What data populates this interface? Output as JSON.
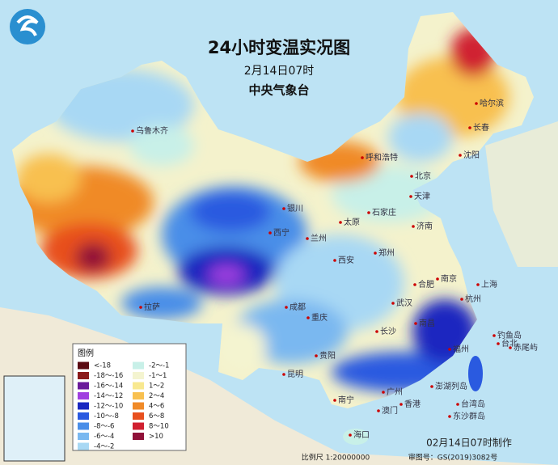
{
  "header": {
    "title": "24小时变温实况图",
    "subtitle": "2月14日07时",
    "org": "中央气象台"
  },
  "legend": {
    "title": "图例",
    "items": [
      {
        "label": "<-18",
        "color": "#5a0a12"
      },
      {
        "label": "-18～-16",
        "color": "#8a1a1a"
      },
      {
        "label": "-16～-14",
        "color": "#6a1a9a"
      },
      {
        "label": "-14～-12",
        "color": "#a040e0"
      },
      {
        "label": "-12～-10",
        "color": "#1a28c0"
      },
      {
        "label": "-10～-8",
        "color": "#2a5ae0"
      },
      {
        "label": "-8～-6",
        "color": "#4a8ee8"
      },
      {
        "label": "-6～-4",
        "color": "#7ab8f0"
      },
      {
        "label": "-4～-2",
        "color": "#a8d8f4"
      },
      {
        "label": "-2～-1",
        "color": "#c8f0e8"
      },
      {
        "label": "-1～1",
        "color": "#f4f4d0"
      },
      {
        "label": "1～2",
        "color": "#f8e890"
      },
      {
        "label": "2～4",
        "color": "#f8c050"
      },
      {
        "label": "4～6",
        "color": "#f08a28"
      },
      {
        "label": "6～8",
        "color": "#e8501e"
      },
      {
        "label": "8～10",
        "color": "#d02030"
      },
      {
        "label": ">10",
        "color": "#901038"
      }
    ]
  },
  "cities": [
    "乌鲁木齐",
    "哈尔滨",
    "长春",
    "沈阳",
    "呼和浩特",
    "北京",
    "天津",
    "石家庄",
    "太原",
    "济南",
    "银川",
    "西宁",
    "兰州",
    "西安",
    "郑州",
    "合肥",
    "南京",
    "拉萨",
    "成都",
    "武汉",
    "重庆",
    "杭州",
    "上海",
    "长沙",
    "南昌",
    "贵阳",
    "福州",
    "昆明",
    "南宁",
    "广州",
    "香港",
    "澳门",
    "台北",
    "海口",
    "钓鱼岛",
    "赤尾屿",
    "台湾岛",
    "澎湖列岛",
    "东沙群岛"
  ],
  "footer": {
    "made": "02月14日07时制作",
    "scale": "比例尺 1:20000000",
    "approval": "审图号：GS(2019)3082号"
  }
}
